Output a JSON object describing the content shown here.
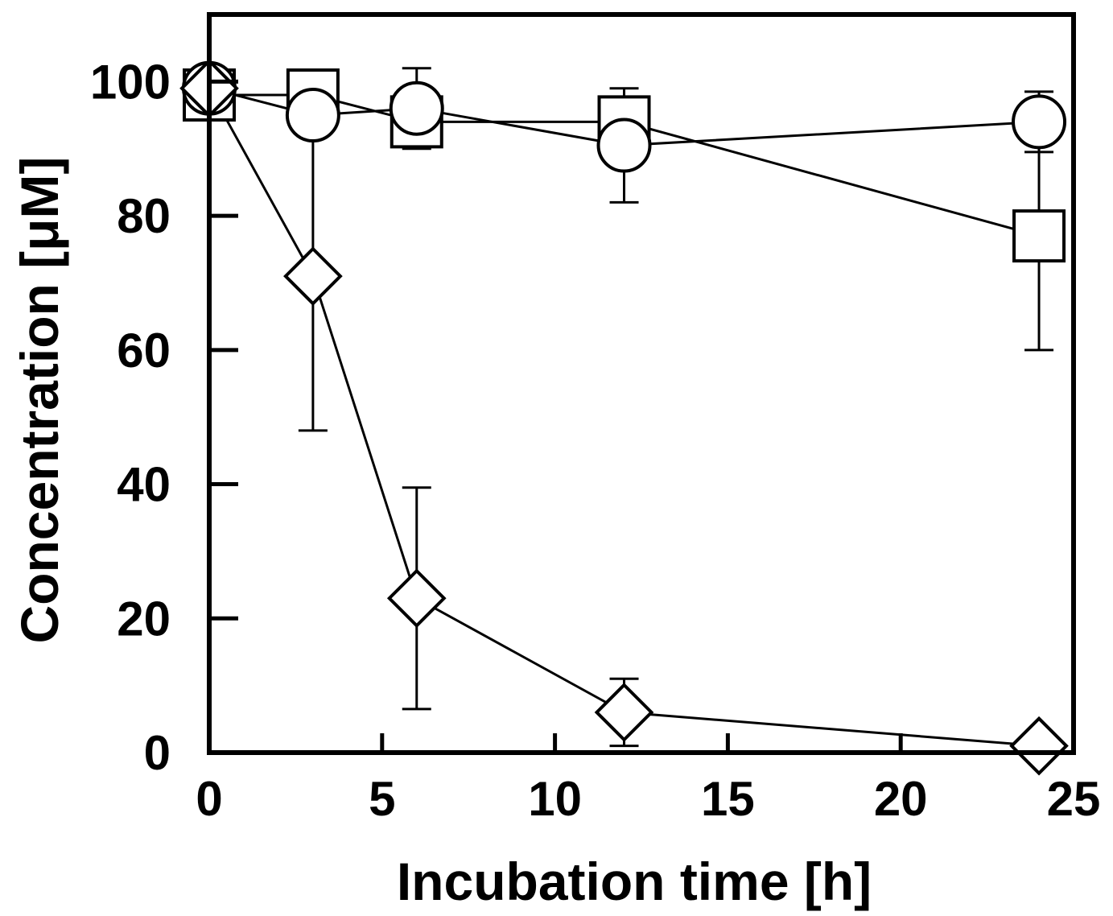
{
  "chart_data": {
    "type": "line",
    "title": "",
    "xlabel": "Incubation time [h]",
    "ylabel": "Concentration [μM]",
    "xlim": [
      0,
      25
    ],
    "ylim": [
      0,
      110
    ],
    "xticks": [
      0,
      5,
      10,
      15,
      20,
      25
    ],
    "yticks": [
      0,
      20,
      40,
      60,
      80,
      100
    ],
    "grid": false,
    "legend": null,
    "series": [
      {
        "name": "square",
        "marker": "square",
        "x": [
          0,
          3,
          6,
          12,
          24
        ],
        "y": [
          98,
          98,
          94,
          94,
          77
        ],
        "err": [
          null,
          null,
          null,
          null,
          17
        ]
      },
      {
        "name": "circle",
        "marker": "circle",
        "x": [
          0,
          3,
          6,
          12,
          24
        ],
        "y": [
          99,
          95,
          96,
          90.5,
          94
        ],
        "err": [
          null,
          0,
          6,
          8.5,
          4.5
        ]
      },
      {
        "name": "diamond",
        "marker": "diamond",
        "x": [
          0,
          3,
          6,
          12,
          24
        ],
        "y": [
          99,
          71,
          23,
          6,
          1
        ],
        "err": [
          null,
          23,
          16.5,
          5,
          null
        ]
      }
    ]
  }
}
